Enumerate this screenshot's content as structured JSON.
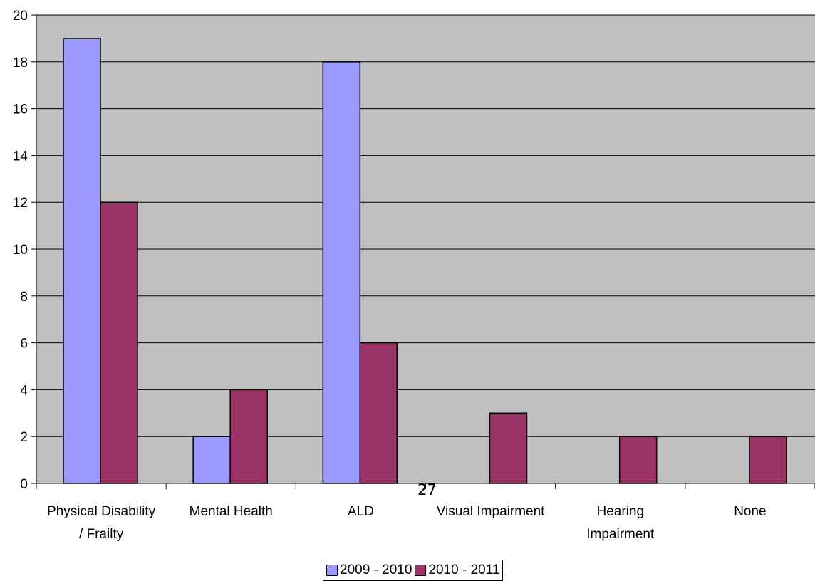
{
  "page_number": "27",
  "chart_data": {
    "type": "bar",
    "categories": [
      [
        "Physical Disability",
        "/ Frailty"
      ],
      [
        "Mental Health"
      ],
      [
        "ALD"
      ],
      [
        "Visual Impairment"
      ],
      [
        "Hearing",
        "Impairment"
      ],
      [
        "None"
      ]
    ],
    "series": [
      {
        "name": "2009 - 2010",
        "color": "#9999ff",
        "values": [
          19,
          2,
          18,
          0,
          0,
          0
        ]
      },
      {
        "name": "2010 - 2011",
        "color": "#993366",
        "values": [
          12,
          4,
          6,
          3,
          2,
          2
        ]
      }
    ],
    "ylim": [
      0,
      20
    ],
    "yticks": [
      0,
      2,
      4,
      6,
      8,
      10,
      12,
      14,
      16,
      18,
      20
    ],
    "grid": true,
    "plot_background": "#c0c0c0",
    "legend_position": "bottom"
  }
}
